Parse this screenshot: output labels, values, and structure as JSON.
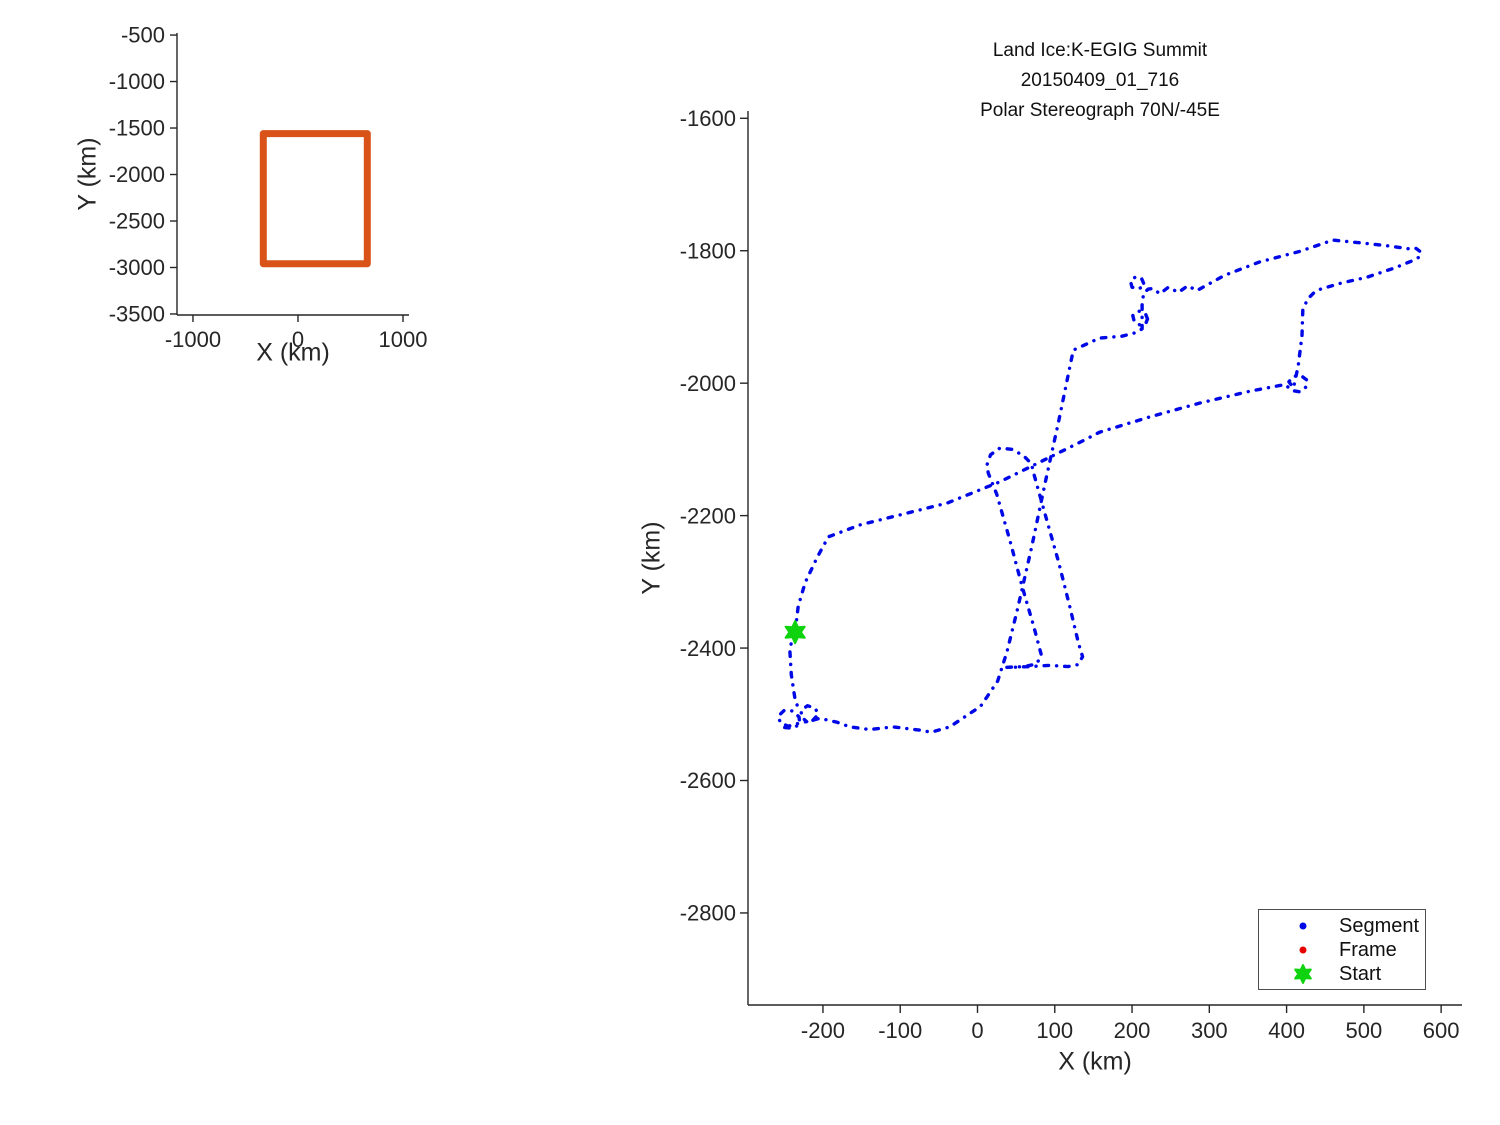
{
  "figure": {
    "background": "#ffffff",
    "kind": "flight-track-figure"
  },
  "colors": {
    "segment_track": "#0008E6",
    "frame": "#E60000",
    "start_marker": "#0ED30E",
    "flight_box": "#D95319",
    "axis": "#262626",
    "tick_label": "#262626",
    "title_text": "#111111"
  },
  "legend": {
    "items": [
      {
        "label": "Segment",
        "marker": "dot",
        "color": "#0008E6"
      },
      {
        "label": "Frame",
        "marker": "dot",
        "color": "#E60000"
      },
      {
        "label": "Start",
        "marker": "hexagram",
        "color": "#0ED30E"
      }
    ],
    "position": "bottom-right"
  },
  "chart_data": [
    {
      "type": "line",
      "name": "overview-map",
      "xlabel": "X (km)",
      "ylabel": "Y (km)",
      "xlim": [
        -1152,
        1057
      ],
      "ylim": [
        -3511,
        -478
      ],
      "xticks": [
        -1000,
        0,
        1000
      ],
      "yticks": [
        -500,
        -1000,
        -1500,
        -2000,
        -2500,
        -3000,
        -3500
      ],
      "grid": false,
      "series": [
        {
          "name": "flight-bounding-box",
          "color": "#D95319",
          "linewidth": 7,
          "style": "solid",
          "points": [
            [
              -330,
              -1560
            ],
            [
              660,
              -1560
            ],
            [
              660,
              -2960
            ],
            [
              -330,
              -2960
            ],
            [
              -330,
              -1560
            ]
          ]
        }
      ]
    },
    {
      "type": "line",
      "name": "flight-track",
      "title": [
        "Land Ice:K-EGIG Summit",
        "20150409_01_716",
        "Polar Stereograph 70N/-45E"
      ],
      "xlabel": "X (km)",
      "ylabel": "Y (km)",
      "xlim": [
        -297,
        627
      ],
      "ylim": [
        -2939,
        -1589
      ],
      "xticks": [
        -200,
        -100,
        0,
        100,
        200,
        300,
        400,
        500,
        600
      ],
      "yticks": [
        -1600,
        -1800,
        -2000,
        -2200,
        -2400,
        -2600,
        -2800
      ],
      "grid": false,
      "track_color": "#0008E6",
      "track_linewidth": 3.4,
      "track_style": "dashed",
      "start_point": [
        -236,
        -2376
      ],
      "segments": [
        [
          [
            -236,
            -2376
          ],
          [
            -232,
            -2337
          ],
          [
            -223,
            -2301
          ],
          [
            -207,
            -2262
          ],
          [
            -193,
            -2232
          ],
          [
            -152,
            -2214
          ],
          [
            -87,
            -2195
          ],
          [
            -39,
            -2181
          ],
          [
            29,
            -2149
          ],
          [
            81,
            -2119
          ],
          [
            133,
            -2089
          ],
          [
            158,
            -2074
          ],
          [
            223,
            -2051
          ],
          [
            288,
            -2030
          ],
          [
            353,
            -2012
          ],
          [
            398,
            -2002
          ],
          [
            407,
            -2011
          ],
          [
            417,
            -2013
          ],
          [
            425,
            -2006
          ],
          [
            426,
            -1995
          ],
          [
            418,
            -1988
          ],
          [
            408,
            -1990
          ],
          [
            403,
            -1998
          ],
          [
            409,
            -2007
          ],
          [
            415,
            -1974
          ],
          [
            420,
            -1928
          ],
          [
            421,
            -1890
          ],
          [
            427,
            -1873
          ],
          [
            435,
            -1864
          ],
          [
            444,
            -1858
          ],
          [
            470,
            -1849
          ],
          [
            504,
            -1840
          ],
          [
            540,
            -1826
          ],
          [
            561,
            -1816
          ],
          [
            571,
            -1810
          ],
          [
            574,
            -1802
          ],
          [
            567,
            -1796
          ],
          [
            557,
            -1797
          ],
          [
            534,
            -1793
          ],
          [
            495,
            -1788
          ],
          [
            460,
            -1784
          ],
          [
            417,
            -1801
          ],
          [
            365,
            -1817
          ],
          [
            320,
            -1837
          ],
          [
            284,
            -1860
          ],
          [
            272,
            -1853
          ],
          [
            260,
            -1863
          ],
          [
            247,
            -1855
          ],
          [
            236,
            -1865
          ],
          [
            227,
            -1857
          ],
          [
            221,
            -1858
          ],
          [
            215,
            -1864
          ],
          [
            213,
            -1882
          ],
          [
            213,
            -1918
          ],
          [
            204,
            -1924
          ],
          [
            187,
            -1929
          ],
          [
            158,
            -1932
          ],
          [
            124,
            -1950
          ],
          [
            105,
            -2058
          ],
          [
            88,
            -2148
          ],
          [
            70,
            -2248
          ],
          [
            52,
            -2340
          ],
          [
            38,
            -2406
          ],
          [
            26,
            -2450
          ],
          [
            4,
            -2488
          ],
          [
            -36,
            -2519
          ],
          [
            -60,
            -2527
          ],
          [
            -74,
            -2524
          ],
          [
            -109,
            -2519
          ],
          [
            -140,
            -2523
          ],
          [
            -165,
            -2519
          ],
          [
            -182,
            -2512
          ],
          [
            -204,
            -2506
          ],
          [
            -213,
            -2509
          ]
        ],
        [
          [
            -213,
            -2509
          ],
          [
            -206,
            -2500
          ],
          [
            -210,
            -2491
          ],
          [
            -220,
            -2487
          ],
          [
            -228,
            -2494
          ],
          [
            -228,
            -2504
          ],
          [
            -221,
            -2511
          ],
          [
            -233,
            -2514
          ],
          [
            -245,
            -2518
          ],
          [
            -255,
            -2513
          ],
          [
            -258,
            -2503
          ],
          [
            -250,
            -2494
          ],
          [
            -239,
            -2495
          ],
          [
            -231,
            -2504
          ],
          [
            -230,
            -2515
          ],
          [
            -239,
            -2521
          ],
          [
            -250,
            -2520
          ],
          [
            -256,
            -2513
          ]
        ],
        [
          [
            -236,
            -2376
          ],
          [
            -243,
            -2400
          ],
          [
            -241,
            -2440
          ],
          [
            -236,
            -2478
          ],
          [
            -230,
            -2497
          ]
        ],
        [
          [
            215,
            -1849
          ],
          [
            212,
            -1841
          ],
          [
            204,
            -1840
          ],
          [
            198,
            -1846
          ],
          [
            200,
            -1855
          ],
          [
            208,
            -1858
          ],
          [
            214,
            -1854
          ],
          [
            215,
            -1849
          ]
        ],
        [
          [
            220,
            -1903
          ],
          [
            217,
            -1894
          ],
          [
            208,
            -1891
          ],
          [
            201,
            -1898
          ],
          [
            203,
            -1908
          ],
          [
            212,
            -1913
          ],
          [
            218,
            -1909
          ],
          [
            220,
            -1903
          ]
        ],
        [
          [
            38,
            -2429
          ],
          [
            60,
            -2428
          ],
          [
            76,
            -2424
          ],
          [
            83,
            -2412
          ],
          [
            73,
            -2368
          ],
          [
            58,
            -2308
          ],
          [
            42,
            -2238
          ],
          [
            25,
            -2168
          ],
          [
            14,
            -2136
          ],
          [
            12,
            -2124
          ],
          [
            17,
            -2108
          ],
          [
            29,
            -2098
          ],
          [
            45,
            -2100
          ],
          [
            60,
            -2110
          ],
          [
            70,
            -2122
          ],
          [
            72,
            -2133
          ],
          [
            88,
            -2200
          ],
          [
            105,
            -2270
          ],
          [
            120,
            -2340
          ],
          [
            131,
            -2394
          ],
          [
            136,
            -2413
          ],
          [
            130,
            -2425
          ],
          [
            117,
            -2428
          ],
          [
            94,
            -2426
          ],
          [
            68,
            -2428
          ],
          [
            44,
            -2429
          ]
        ]
      ]
    }
  ]
}
